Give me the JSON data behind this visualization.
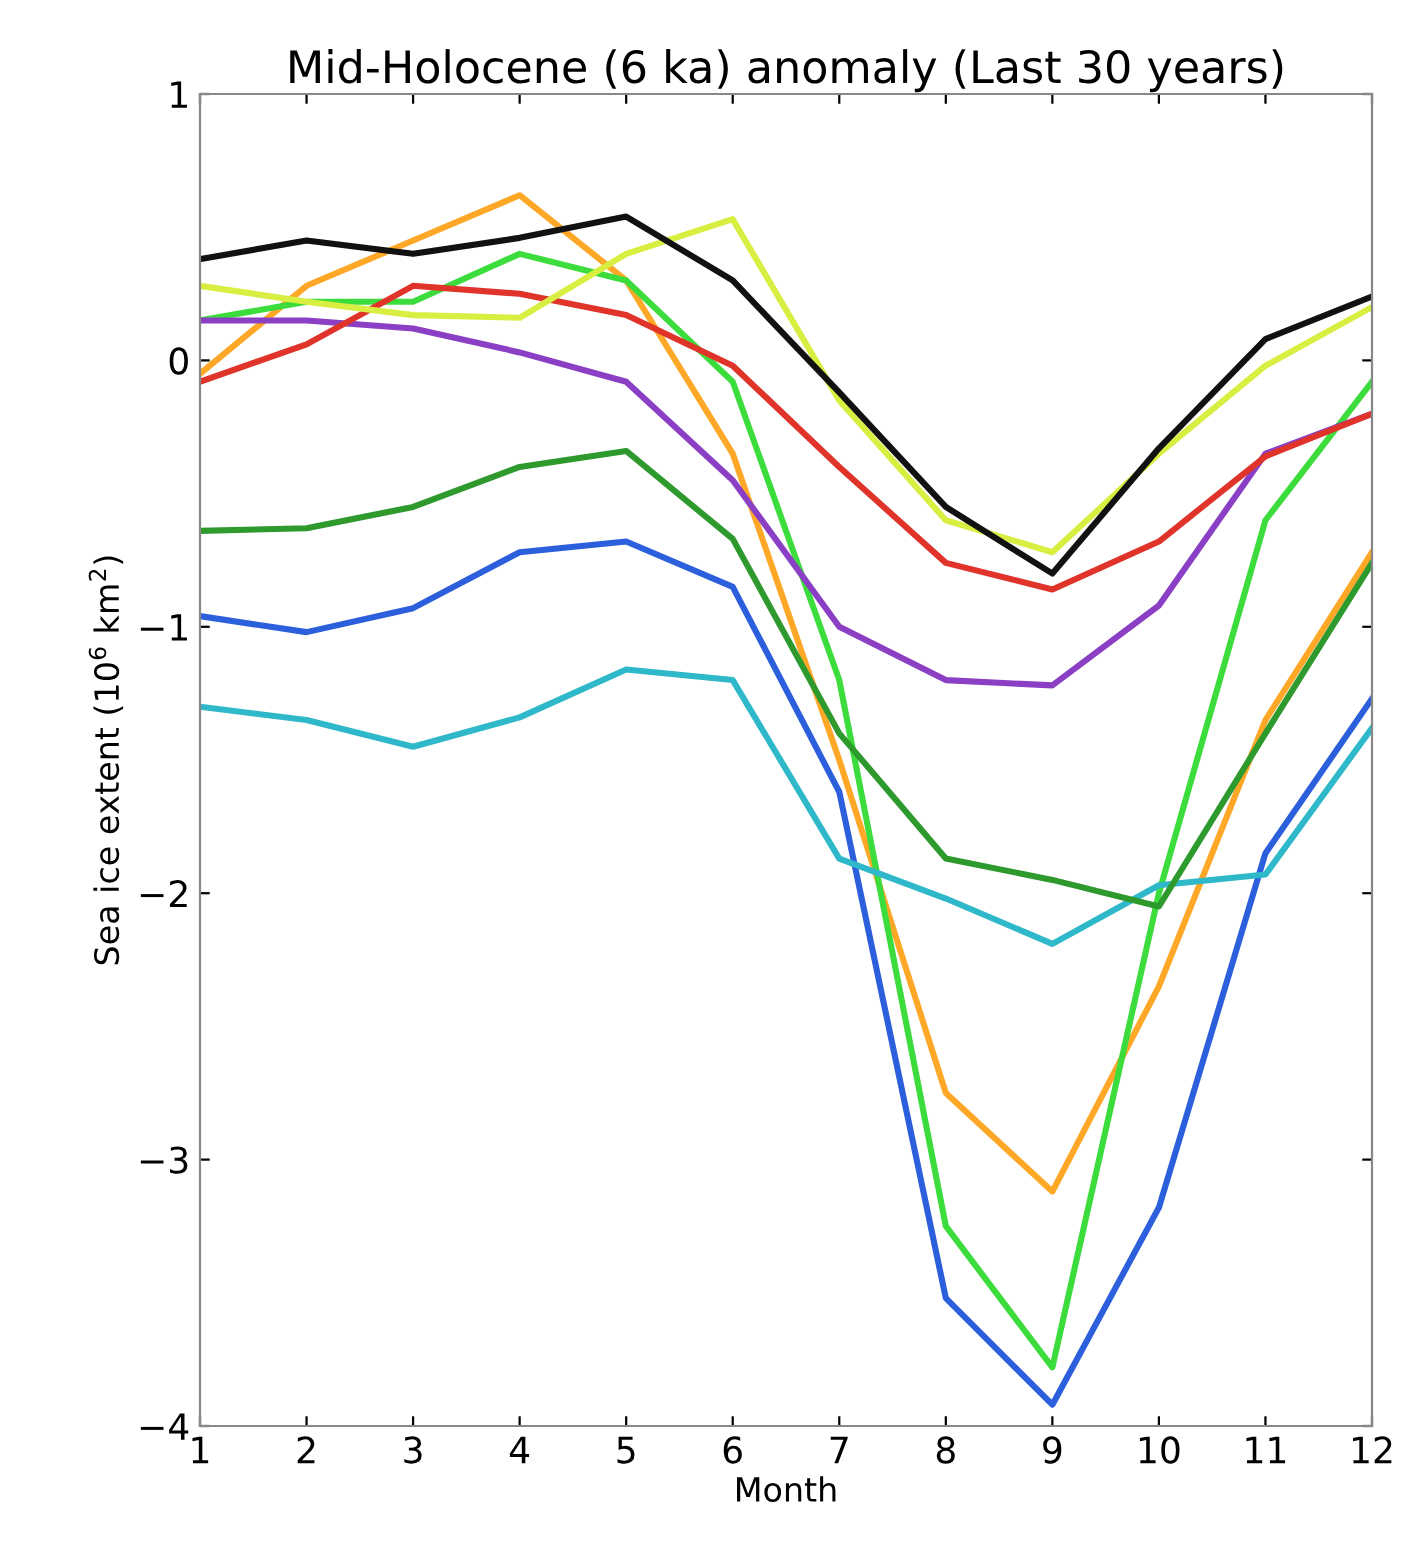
{
  "chart_data": {
    "type": "line",
    "title": "Mid-Holocene (6 ka) anomaly (Last 30 years)",
    "xlabel": "Month",
    "ylabel": "Sea ice extent (10$^{6}$ km$^{2}$)",
    "x": [
      1,
      2,
      3,
      4,
      5,
      6,
      7,
      8,
      9,
      10,
      11,
      12
    ],
    "xlim": [
      1,
      12
    ],
    "xticks": [
      1,
      2,
      3,
      4,
      5,
      6,
      7,
      8,
      9,
      10,
      11,
      12
    ],
    "ylim": [
      -4,
      1
    ],
    "yticks": [
      {
        "value": -4,
        "label": "−4"
      },
      {
        "value": -3,
        "label": "−3"
      },
      {
        "value": -2,
        "label": "−2"
      },
      {
        "value": -1,
        "label": "−1"
      },
      0,
      1
    ],
    "grid": false,
    "marker": "none",
    "line_style": "solid",
    "series": [
      {
        "color": "#ffa726",
        "values": [
          -0.05,
          0.28,
          0.45,
          0.62,
          0.3,
          -0.35,
          -1.5,
          -2.75,
          -3.12,
          -2.35,
          -1.35,
          -0.72
        ]
      },
      {
        "color": "#3ddc3d",
        "values": [
          0.15,
          0.22,
          0.22,
          0.4,
          0.3,
          -0.08,
          -1.2,
          -3.25,
          -3.78,
          -2.0,
          -0.6,
          -0.08
        ]
      },
      {
        "color": "#2c5fdc",
        "values": [
          -0.96,
          -1.02,
          -0.93,
          -0.72,
          -0.68,
          -0.85,
          -1.62,
          -3.52,
          -3.92,
          -3.18,
          -1.85,
          -1.27
        ]
      },
      {
        "color": "#2fb8c9",
        "values": [
          -1.3,
          -1.35,
          -1.45,
          -1.34,
          -1.16,
          -1.2,
          -1.87,
          -2.02,
          -2.19,
          -1.97,
          -1.93,
          -1.38
        ]
      },
      {
        "color": "#2e9a2e",
        "values": [
          -0.64,
          -0.63,
          -0.55,
          -0.4,
          -0.34,
          -0.67,
          -1.4,
          -1.87,
          -1.95,
          -2.05,
          -1.4,
          -0.76
        ]
      },
      {
        "color": "#8b3fc4",
        "values": [
          0.15,
          0.15,
          0.12,
          0.03,
          -0.08,
          -0.45,
          -1.0,
          -1.2,
          -1.22,
          -0.92,
          -0.35,
          -0.2
        ]
      },
      {
        "color": "#e0342a",
        "values": [
          -0.08,
          0.06,
          0.28,
          0.25,
          0.17,
          -0.02,
          -0.4,
          -0.76,
          -0.86,
          -0.68,
          -0.36,
          -0.2
        ]
      },
      {
        "color": "#d8ee40",
        "values": [
          0.28,
          0.22,
          0.17,
          0.16,
          0.4,
          0.53,
          -0.15,
          -0.6,
          -0.72,
          -0.35,
          -0.02,
          0.2
        ]
      },
      {
        "color": "#111111",
        "values": [
          0.38,
          0.45,
          0.4,
          0.46,
          0.54,
          0.3,
          -0.12,
          -0.55,
          -0.8,
          -0.33,
          0.08,
          0.24
        ]
      }
    ]
  }
}
